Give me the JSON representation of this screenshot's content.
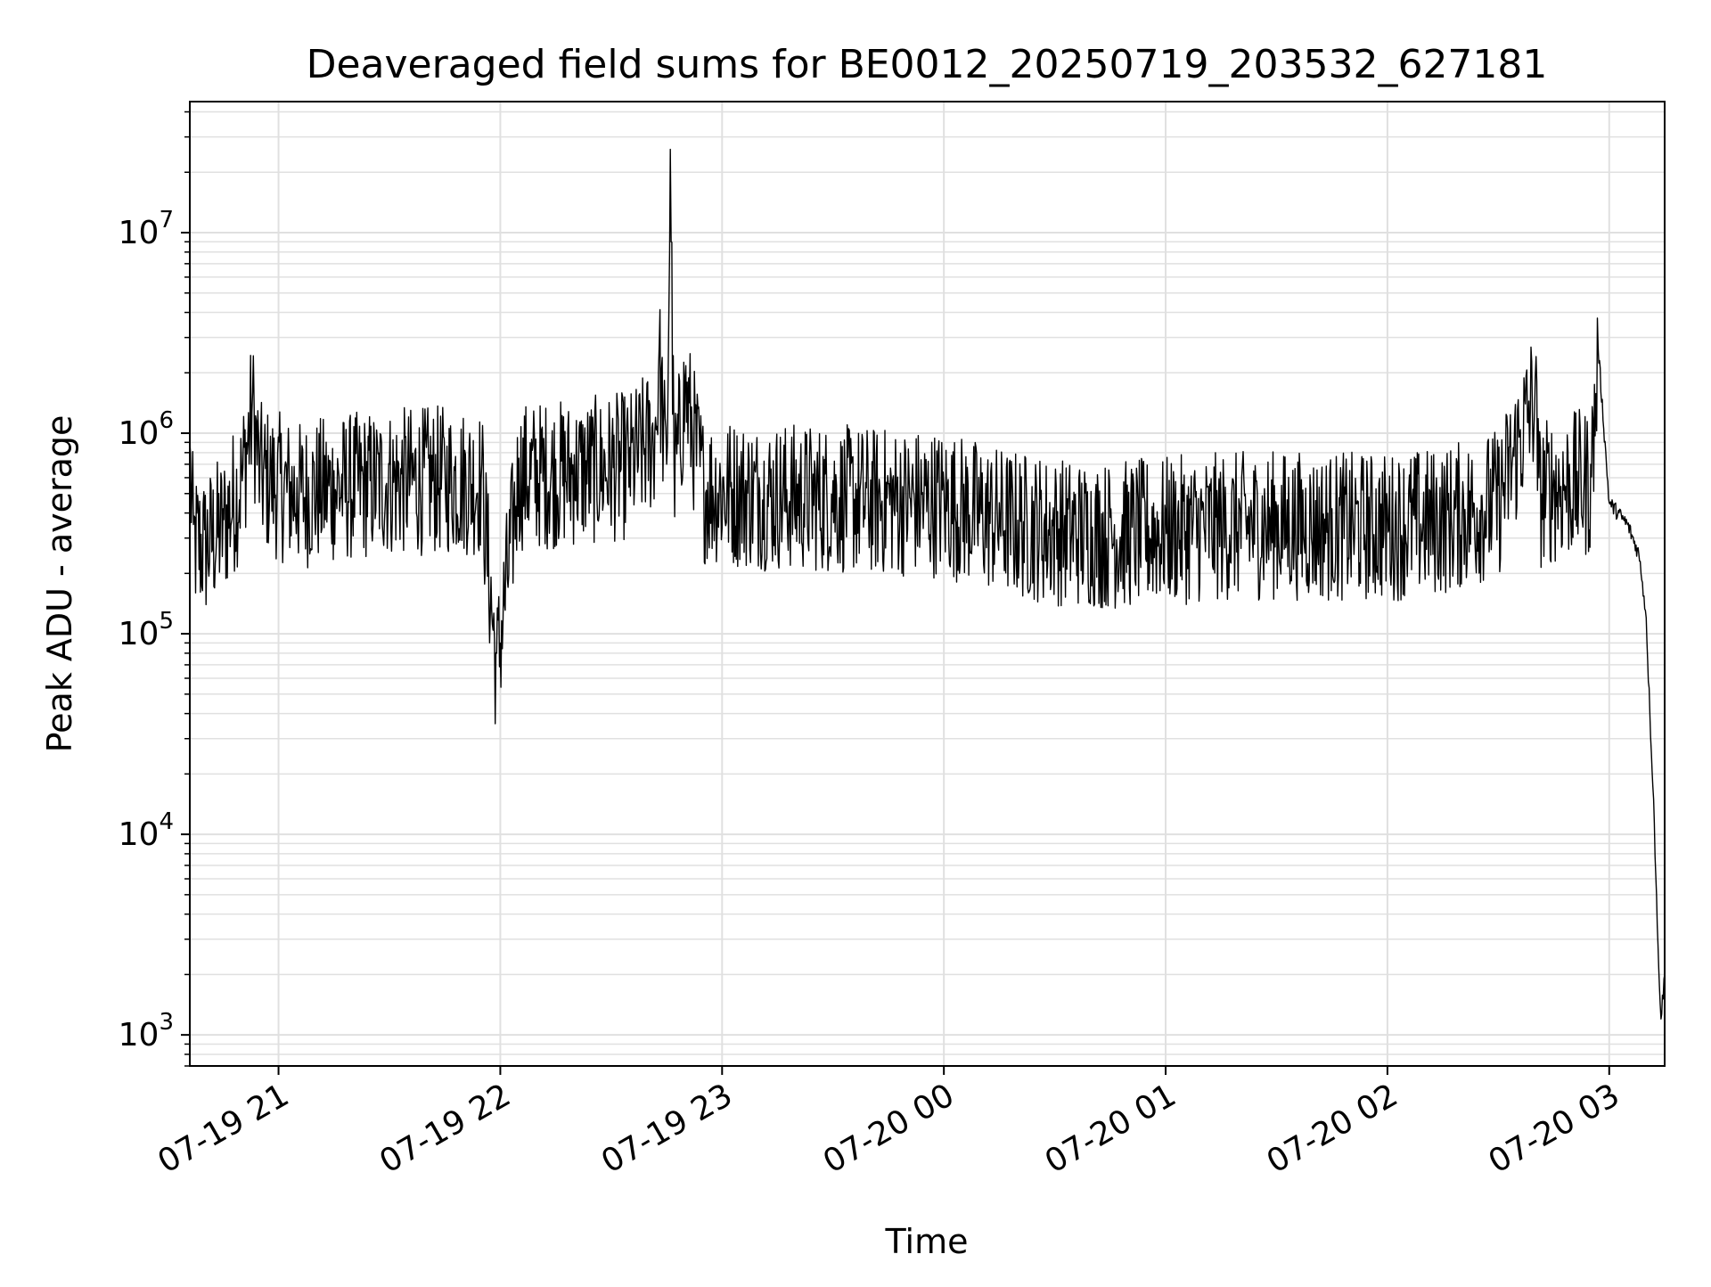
{
  "chart_data": {
    "type": "line",
    "title": "Deaveraged field sums for BE0012_20250719_203532_627181",
    "xlabel": "Time",
    "ylabel": "Peak ADU - average",
    "yscale": "log",
    "ylim": [
      700,
      45000000
    ],
    "xlim": [
      "2025-07-19 20:36",
      "2025-07-20 03:15"
    ],
    "grid": true,
    "line_color": "#000000",
    "grid_color": "#e0e0e0",
    "x_ticks": [
      {
        "t": "2025-07-19 21:00",
        "label": "07-19 21"
      },
      {
        "t": "2025-07-19 22:00",
        "label": "07-19 22"
      },
      {
        "t": "2025-07-19 23:00",
        "label": "07-19 23"
      },
      {
        "t": "2025-07-20 00:00",
        "label": "07-20 00"
      },
      {
        "t": "2025-07-20 01:00",
        "label": "07-20 01"
      },
      {
        "t": "2025-07-20 02:00",
        "label": "07-20 02"
      },
      {
        "t": "2025-07-20 03:00",
        "label": "07-20 03"
      }
    ],
    "y_ticks": [
      {
        "value": 1000,
        "base": "10",
        "exp": "3"
      },
      {
        "value": 10000,
        "base": "10",
        "exp": "4"
      },
      {
        "value": 100000,
        "base": "10",
        "exp": "5"
      },
      {
        "value": 1000000,
        "base": "10",
        "exp": "6"
      },
      {
        "value": 10000000,
        "base": "10",
        "exp": "7"
      }
    ],
    "series": [
      {
        "x": [
          "2025-07-19 20:36",
          "2025-07-19 20:37",
          "2025-07-19 20:40",
          "2025-07-19 20:45",
          "2025-07-19 20:50",
          "2025-07-19 20:53",
          "2025-07-19 20:55",
          "2025-07-19 20:58",
          "2025-07-19 21:05",
          "2025-07-19 21:15",
          "2025-07-19 21:30",
          "2025-07-19 21:45",
          "2025-07-19 21:55",
          "2025-07-19 21:59",
          "2025-07-19 22:05",
          "2025-07-19 22:20",
          "2025-07-19 22:35",
          "2025-07-19 22:42",
          "2025-07-19 22:43",
          "2025-07-19 22:45",
          "2025-07-19 22:46",
          "2025-07-19 22:47",
          "2025-07-19 22:50",
          "2025-07-19 22:55",
          "2025-07-19 23:10",
          "2025-07-19 23:30",
          "2025-07-19 23:45",
          "2025-07-20 00:00",
          "2025-07-20 00:15",
          "2025-07-20 00:30",
          "2025-07-20 00:45",
          "2025-07-20 01:00",
          "2025-07-20 01:15",
          "2025-07-20 01:30",
          "2025-07-20 01:45",
          "2025-07-20 02:00",
          "2025-07-20 02:15",
          "2025-07-20 02:30",
          "2025-07-20 02:40",
          "2025-07-20 02:41",
          "2025-07-20 02:45",
          "2025-07-20 02:55",
          "2025-07-20 02:57",
          "2025-07-20 03:00",
          "2025-07-20 03:05",
          "2025-07-20 03:08",
          "2025-07-20 03:09",
          "2025-07-20 03:10",
          "2025-07-20 03:11",
          "2025-07-20 03:12",
          "2025-07-20 03:13",
          "2025-07-20 03:14",
          "2025-07-20 03:15"
        ],
        "y": [
          900000,
          350000,
          330000,
          420000,
          700000,
          1600000,
          750000,
          700000,
          600000,
          650000,
          700000,
          720000,
          700000,
          80000,
          750000,
          780000,
          850000,
          1200000,
          2800000,
          700000,
          26000000,
          700000,
          1900000,
          650000,
          600000,
          580000,
          560000,
          550000,
          450000,
          400000,
          380000,
          400000,
          420000,
          430000,
          420000,
          420000,
          450000,
          550000,
          1900000,
          600000,
          650000,
          700000,
          2700000,
          450000,
          350000,
          250000,
          180000,
          120000,
          40000,
          15000,
          3500,
          1200,
          2000
        ]
      }
    ]
  }
}
